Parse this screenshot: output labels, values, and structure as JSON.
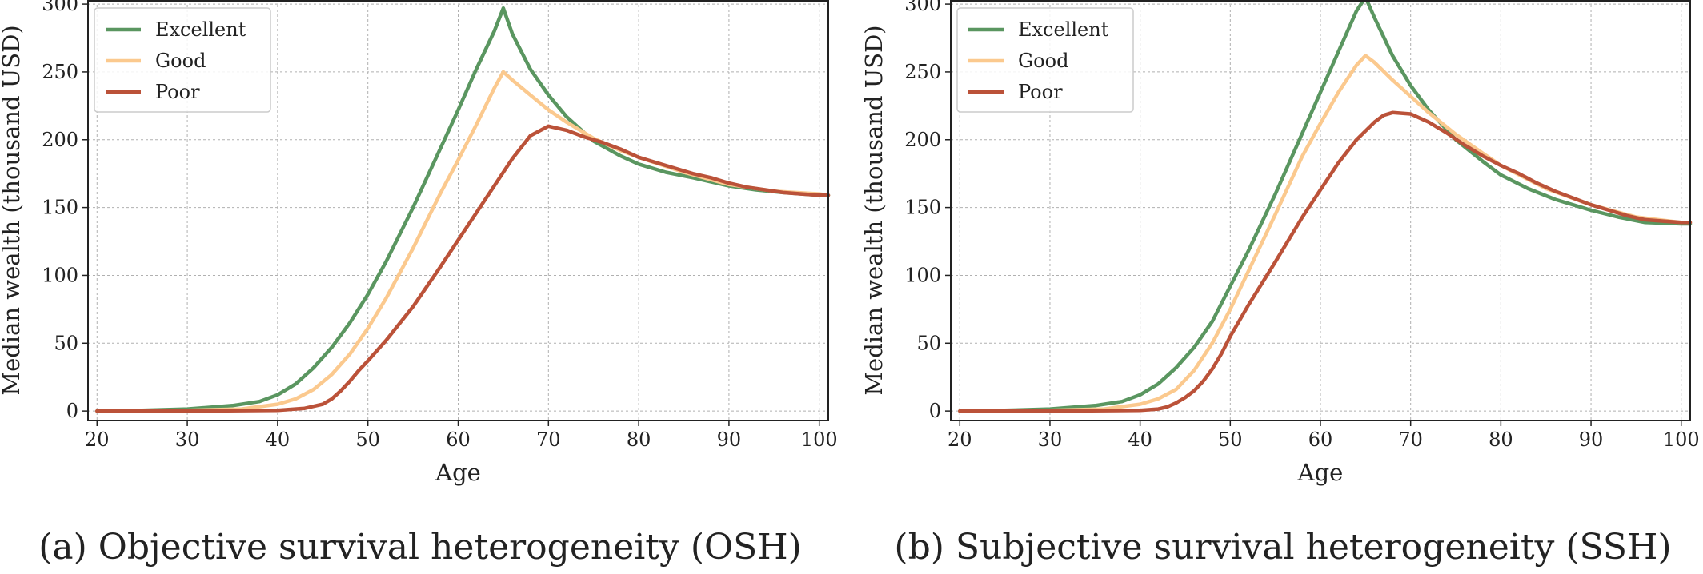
{
  "chart_data": [
    {
      "type": "line",
      "caption": "(a) Objective survival heterogeneity (OSH)",
      "xlabel": "Age",
      "ylabel": "Median wealth (thousand USD)",
      "xlim": [
        19,
        101
      ],
      "ylim": [
        -7,
        303
      ],
      "xticks": [
        20,
        30,
        40,
        50,
        60,
        70,
        80,
        90,
        100
      ],
      "yticks": [
        0,
        50,
        100,
        150,
        200,
        250,
        300
      ],
      "grid": true,
      "legend": "top-left",
      "series": [
        {
          "name": "Excellent",
          "color": "#5a9660",
          "x": [
            20,
            25,
            30,
            35,
            38,
            40,
            42,
            44,
            46,
            48,
            50,
            52,
            55,
            58,
            60,
            62,
            64,
            65,
            66,
            68,
            70,
            72,
            75,
            78,
            80,
            83,
            86,
            90,
            93,
            96,
            100,
            101
          ],
          "y": [
            0,
            0.5,
            1.5,
            4,
            7,
            12,
            20,
            32,
            47,
            65,
            86,
            110,
            150,
            193,
            222,
            252,
            280,
            297,
            278,
            252,
            233,
            217,
            199,
            188,
            182,
            176,
            172,
            166,
            163,
            161,
            159,
            159
          ]
        },
        {
          "name": "Good",
          "color": "#fbc98e",
          "x": [
            20,
            30,
            36,
            40,
            42,
            44,
            46,
            48,
            50,
            52,
            55,
            58,
            60,
            62,
            64,
            65,
            66,
            68,
            70,
            72,
            75,
            78,
            80,
            85,
            90,
            95,
            100,
            101
          ],
          "y": [
            0,
            0.5,
            1.5,
            5,
            9,
            16,
            27,
            42,
            61,
            83,
            120,
            160,
            185,
            211,
            238,
            250,
            244,
            233,
            222,
            213,
            201,
            192,
            187,
            176,
            167,
            162,
            160,
            159
          ]
        },
        {
          "name": "Poor",
          "color": "#bb5239",
          "x": [
            20,
            30,
            40,
            43,
            45,
            46,
            47,
            48,
            49,
            50,
            52,
            55,
            58,
            60,
            62,
            64,
            66,
            68,
            70,
            72,
            74,
            76,
            78,
            80,
            82,
            84,
            86,
            88,
            90,
            92,
            94,
            96,
            98,
            100,
            101
          ],
          "y": [
            0,
            0,
            0.5,
            2,
            5,
            9,
            15,
            22,
            30,
            37,
            52,
            77,
            106,
            126,
            146,
            166,
            186,
            203,
            210,
            207,
            202,
            198,
            193,
            187,
            183,
            179,
            175,
            172,
            168,
            165,
            163,
            161,
            160,
            159,
            159
          ]
        }
      ]
    },
    {
      "type": "line",
      "caption": "(b) Subjective survival heterogeneity (SSH)",
      "xlabel": "Age",
      "ylabel": "Median wealth (thousand USD)",
      "xlim": [
        19,
        101
      ],
      "ylim": [
        -7,
        303
      ],
      "xticks": [
        20,
        30,
        40,
        50,
        60,
        70,
        80,
        90,
        100
      ],
      "yticks": [
        0,
        50,
        100,
        150,
        200,
        250,
        300
      ],
      "grid": true,
      "legend": "top-left",
      "series": [
        {
          "name": "Excellent",
          "color": "#5a9660",
          "x": [
            20,
            25,
            30,
            35,
            38,
            40,
            42,
            44,
            46,
            48,
            50,
            52,
            55,
            58,
            60,
            62,
            64,
            65,
            66,
            68,
            70,
            72,
            75,
            78,
            80,
            83,
            86,
            90,
            93,
            96,
            100,
            101
          ],
          "y": [
            0,
            0.5,
            1.5,
            4,
            7,
            12,
            20,
            32,
            47,
            66,
            92,
            118,
            160,
            205,
            235,
            265,
            295,
            305,
            290,
            262,
            240,
            222,
            200,
            184,
            174,
            164,
            156,
            148,
            143,
            139,
            138,
            138
          ]
        },
        {
          "name": "Good",
          "color": "#fbc98e",
          "x": [
            20,
            30,
            36,
            40,
            42,
            44,
            46,
            48,
            50,
            52,
            55,
            58,
            60,
            62,
            64,
            65,
            66,
            68,
            70,
            72,
            75,
            78,
            80,
            85,
            90,
            95,
            100,
            101
          ],
          "y": [
            0,
            0.5,
            1.5,
            5,
            9,
            16,
            30,
            50,
            75,
            103,
            145,
            188,
            212,
            235,
            255,
            262,
            257,
            244,
            232,
            220,
            204,
            190,
            181,
            164,
            152,
            143,
            139,
            139
          ]
        },
        {
          "name": "Poor",
          "color": "#bb5239",
          "x": [
            20,
            30,
            40,
            42,
            43,
            44,
            45,
            46,
            47,
            48,
            49,
            50,
            52,
            55,
            58,
            60,
            62,
            64,
            66,
            67,
            68,
            70,
            72,
            74,
            76,
            78,
            80,
            82,
            84,
            86,
            88,
            90,
            92,
            94,
            96,
            98,
            100,
            101
          ],
          "y": [
            0,
            0,
            0.5,
            1.5,
            3,
            6,
            10,
            15,
            22,
            31,
            42,
            55,
            78,
            110,
            143,
            163,
            183,
            200,
            213,
            218,
            220,
            219,
            213,
            205,
            196,
            188,
            181,
            175,
            168,
            162,
            157,
            152,
            148,
            144,
            141,
            140,
            139,
            139
          ]
        }
      ]
    }
  ]
}
